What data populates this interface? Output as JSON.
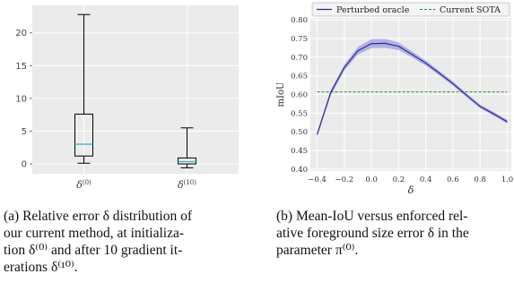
{
  "colors": {
    "plot_bg": "#ebebeb",
    "grid": "#ffffff",
    "box": "#000000",
    "median": "#3cb4d4",
    "oracle_line": "#2a2aa0",
    "oracle_band": "#9d9de0",
    "sota_line": "#2e8b2e"
  },
  "chart_data": [
    {
      "type": "box",
      "categories": [
        "δ(0)",
        "δ(10)"
      ],
      "category_tick_labels": [
        {
          "base": "δ",
          "sup": "(0)"
        },
        {
          "base": "δ",
          "sup": "(10)"
        }
      ],
      "boxes": [
        {
          "name": "δ(0)",
          "whisker_low": 0.1,
          "q1": 1.2,
          "median": 3.0,
          "q3": 7.6,
          "whisker_high": 22.8
        },
        {
          "name": "δ(10)",
          "whisker_low": -0.6,
          "q1": 0.0,
          "median": 0.35,
          "q3": 0.9,
          "whisker_high": 5.5
        }
      ],
      "ylim": [
        -1.5,
        24.2
      ],
      "yticks": [
        0,
        5,
        10,
        15,
        20
      ],
      "ytick_labels": [
        "0",
        "5",
        "10",
        "15",
        "20"
      ],
      "grid": true,
      "title": "",
      "xlabel": "",
      "ylabel": ""
    },
    {
      "type": "line",
      "xlabel": "δ",
      "ylabel": "mIoU",
      "xlim": [
        -0.45,
        1.03
      ],
      "ylim": [
        0.395,
        0.805
      ],
      "xticks": [
        -0.4,
        -0.2,
        0.0,
        0.2,
        0.4,
        0.6,
        0.8,
        1.0
      ],
      "xtick_labels": [
        "−0.4",
        "−0.2",
        "0.0",
        "0.2",
        "0.4",
        "0.6",
        "0.8",
        "1.0"
      ],
      "yticks": [
        0.4,
        0.45,
        0.5,
        0.55,
        0.6,
        0.65,
        0.7,
        0.75,
        0.8
      ],
      "ytick_labels": [
        "0.40",
        "0.45",
        "0.50",
        "0.55",
        "0.60",
        "0.65",
        "0.70",
        "0.75",
        "0.80"
      ],
      "grid": true,
      "legend": {
        "placement": "top-center, above plot",
        "entries": [
          "Perturbed oracle",
          "Current SOTA"
        ]
      },
      "series": [
        {
          "name": "Perturbed oracle",
          "style": "solid",
          "x": [
            -0.4,
            -0.3,
            -0.2,
            -0.1,
            0.0,
            0.1,
            0.2,
            0.3,
            0.4,
            0.5,
            0.6,
            0.7,
            0.8,
            0.9,
            1.0
          ],
          "y": [
            0.493,
            0.605,
            0.672,
            0.717,
            0.736,
            0.737,
            0.729,
            0.707,
            0.684,
            0.657,
            0.629,
            0.598,
            0.568,
            0.548,
            0.527
          ],
          "band": [
            0.006,
            0.007,
            0.008,
            0.01,
            0.012,
            0.012,
            0.01,
            0.008,
            0.007,
            0.006,
            0.006,
            0.005,
            0.005,
            0.005,
            0.005
          ]
        },
        {
          "name": "Current SOTA",
          "style": "dashed",
          "x": [
            -0.4,
            1.0
          ],
          "y": [
            0.607,
            0.607
          ]
        }
      ]
    }
  ],
  "captions": {
    "a": {
      "lines": [
        "(a)  Relative error δ distribution of",
        "our current method, at initializa-",
        "tion δ⁽⁰⁾ and after 10 gradient it-",
        "erations δ⁽¹⁰⁾."
      ]
    },
    "b": {
      "lines": [
        "(b) Mean-IoU versus enforced rel-",
        "ative foreground size error δ in the",
        "parameter π⁽⁰⁾."
      ]
    }
  }
}
